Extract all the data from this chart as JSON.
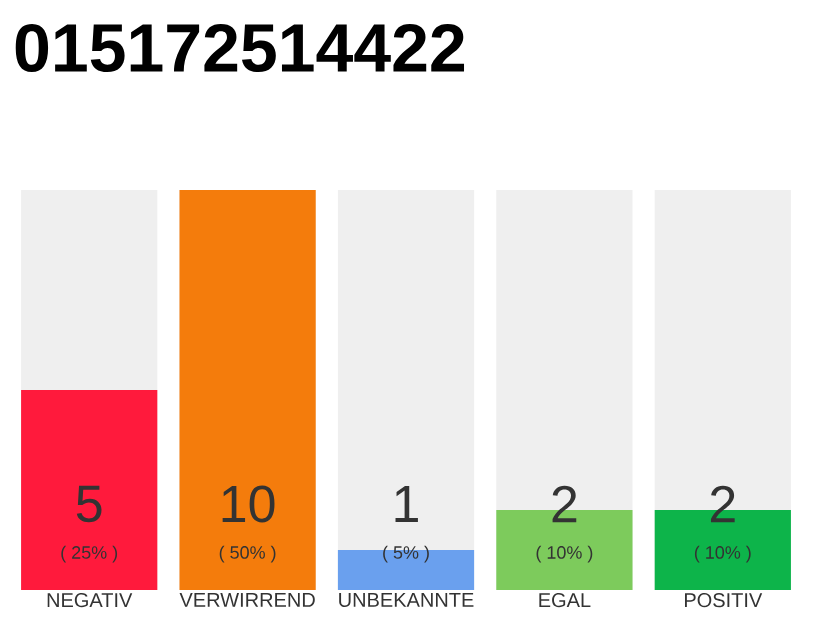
{
  "chart_data": {
    "type": "bar",
    "title": "015172514422",
    "categories": [
      "NEGATIV",
      "VERWIRREND",
      "UNBEKANNTE",
      "EGAL",
      "POSITIV"
    ],
    "values": [
      5,
      10,
      1,
      2,
      2
    ],
    "colors": [
      "#ff1a3c",
      "#f47c0c",
      "#6aa0ee",
      "#7dcb5c",
      "#0db44a"
    ],
    "ylim": [
      0,
      10
    ],
    "tick_labels": "x",
    "data_labels": true,
    "annotations": [
      "( 25% )",
      "( 50% )",
      "( 5% )",
      "( 10% )",
      "( 10% )"
    ]
  }
}
